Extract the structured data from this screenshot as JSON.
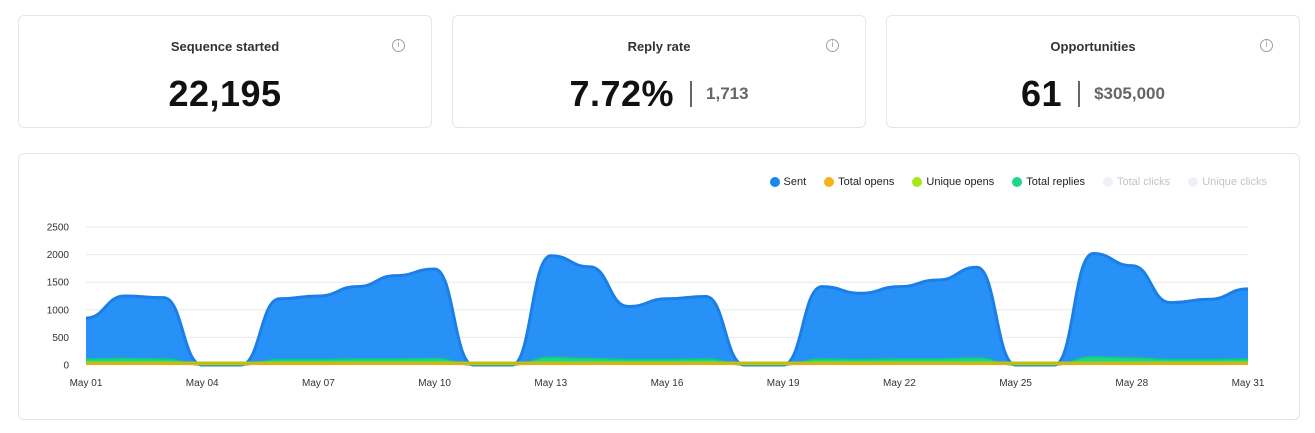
{
  "stats": [
    {
      "title": "Sequence started",
      "value": "22,195",
      "sub": ""
    },
    {
      "title": "Reply rate",
      "value": "7.72%",
      "sub": "1,713"
    },
    {
      "title": "Opportunities",
      "value": "61",
      "sub": "$305,000"
    }
  ],
  "info_icon_glyph": "i",
  "legend": [
    {
      "label": "Sent",
      "color": "#1a86f0",
      "active": true
    },
    {
      "label": "Total opens",
      "color": "#f5b21a",
      "active": true
    },
    {
      "label": "Unique opens",
      "color": "#a8e619",
      "active": true
    },
    {
      "label": "Total replies",
      "color": "#1fd68a",
      "active": true
    },
    {
      "label": "Total clicks",
      "color": "#eef2f7",
      "active": false
    },
    {
      "label": "Unique clicks",
      "color": "#eef2f7",
      "active": false
    }
  ],
  "chart_data": {
    "type": "area",
    "x": [
      "May 01",
      "May 02",
      "May 03",
      "May 04",
      "May 05",
      "May 06",
      "May 07",
      "May 08",
      "May 09",
      "May 10",
      "May 11",
      "May 12",
      "May 13",
      "May 14",
      "May 15",
      "May 16",
      "May 17",
      "May 18",
      "May 19",
      "May 20",
      "May 21",
      "May 22",
      "May 23",
      "May 24",
      "May 25",
      "May 26",
      "May 27",
      "May 28",
      "May 29",
      "May 30",
      "May 31"
    ],
    "x_tick_labels": [
      "May 01",
      "May 04",
      "May 07",
      "May 10",
      "May 13",
      "May 16",
      "May 19",
      "May 22",
      "May 25",
      "May 28",
      "May 31"
    ],
    "y_ticks": [
      0,
      500,
      1000,
      1500,
      2000,
      2500
    ],
    "ylim": [
      0,
      2500
    ],
    "grid": true,
    "legend_position": "top-right",
    "series": [
      {
        "name": "Sent",
        "color": "#2891f7",
        "stroke": "#1a7fe6",
        "values": [
          850,
          1250,
          1220,
          0,
          0,
          1200,
          1250,
          1420,
          1620,
          1740,
          0,
          0,
          1980,
          1780,
          1060,
          1200,
          1240,
          0,
          0,
          1420,
          1300,
          1420,
          1540,
          1770,
          0,
          0,
          2020,
          1800,
          1130,
          1190,
          1380
        ]
      },
      {
        "name": "Total replies",
        "color": "#1fd68a",
        "stroke": "#17c77d",
        "values": [
          110,
          120,
          110,
          0,
          0,
          100,
          100,
          110,
          110,
          120,
          0,
          0,
          140,
          120,
          100,
          100,
          110,
          0,
          0,
          110,
          100,
          110,
          110,
          130,
          0,
          0,
          150,
          130,
          100,
          100,
          110
        ]
      },
      {
        "name": "Unique opens",
        "color": "#a8e619",
        "stroke": "#98d612",
        "values": [
          50,
          50,
          50,
          50,
          50,
          50,
          50,
          50,
          50,
          50,
          50,
          50,
          50,
          50,
          50,
          50,
          50,
          50,
          50,
          50,
          50,
          50,
          50,
          50,
          50,
          50,
          50,
          50,
          50,
          50,
          50
        ]
      },
      {
        "name": "Total opens",
        "color": "#f5b21a",
        "stroke": "#e8a60f",
        "values": [
          25,
          25,
          25,
          25,
          25,
          25,
          25,
          25,
          25,
          25,
          25,
          25,
          25,
          25,
          25,
          25,
          25,
          25,
          25,
          25,
          25,
          25,
          25,
          25,
          25,
          25,
          25,
          25,
          25,
          25,
          25
        ]
      }
    ]
  }
}
